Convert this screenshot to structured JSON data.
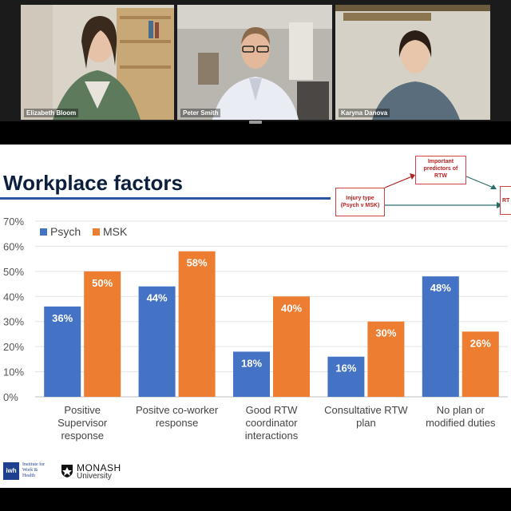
{
  "participants": [
    {
      "name": "Elizabeth Bloom"
    },
    {
      "name": "Peter Smith"
    },
    {
      "name": "Karyna Danova"
    }
  ],
  "slide": {
    "title": "Workplace factors",
    "diagram": {
      "box_predictors": "Important predictors of RTW",
      "box_injury": "Injury type (Psych v MSK)",
      "box_rtw": "RT"
    },
    "logos": {
      "iwh": "Institute for Work & Health",
      "iwh_mark": "iwh",
      "monash_1": "MONASH",
      "monash_2": "University"
    }
  },
  "chart_data": {
    "type": "bar",
    "categories": [
      [
        "Positive",
        "Supervisor",
        "response"
      ],
      [
        "Positve co-worker",
        "response"
      ],
      [
        "Good RTW",
        "coordinator",
        "interactions"
      ],
      [
        "Consultative RTW",
        "plan"
      ],
      [
        "No plan or",
        "modified duties"
      ]
    ],
    "series": [
      {
        "name": "Psych",
        "color": "#4472c4",
        "values": [
          36,
          44,
          18,
          16,
          48
        ],
        "labels": [
          "36%",
          "44%",
          "18%",
          "16%",
          "48%"
        ]
      },
      {
        "name": "MSK",
        "color": "#ed7d31",
        "values": [
          50,
          58,
          40,
          30,
          26
        ],
        "labels": [
          "50%",
          "58%",
          "40%",
          "30%",
          "26%"
        ]
      }
    ],
    "y_ticks": [
      "0%",
      "10%",
      "20%",
      "30%",
      "40%",
      "50%",
      "60%",
      "70%"
    ],
    "ylim": [
      0,
      70
    ],
    "grid": true,
    "legend": "top-left"
  }
}
